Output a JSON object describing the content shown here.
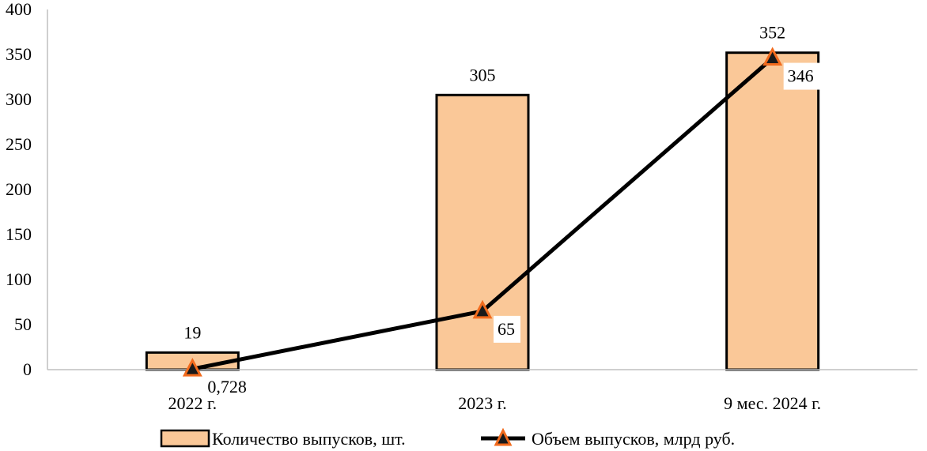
{
  "chart_data": {
    "type": "bar",
    "categories": [
      "2022 г.",
      "2023 г.",
      "9 мес. 2024 г."
    ],
    "ylim": [
      0,
      400
    ],
    "yticks": [
      0,
      50,
      100,
      150,
      200,
      250,
      300,
      350,
      400
    ],
    "series": [
      {
        "name": "Количество выпусков, шт.",
        "type": "bar",
        "values": [
          19,
          305,
          352
        ],
        "labels": [
          "19",
          "305",
          "352"
        ]
      },
      {
        "name": "Объем выпусков, млрд руб.",
        "type": "line",
        "values": [
          0.728,
          65,
          346
        ],
        "labels": [
          "0,728",
          "65",
          "346"
        ]
      }
    ],
    "legend_position": "bottom",
    "grid": false
  },
  "colors": {
    "bar_fill": "#FAC898",
    "bar_stroke": "#000000",
    "line": "#000000",
    "marker_fill": "#1a1a1a",
    "marker_stroke": "#F26B1D"
  }
}
